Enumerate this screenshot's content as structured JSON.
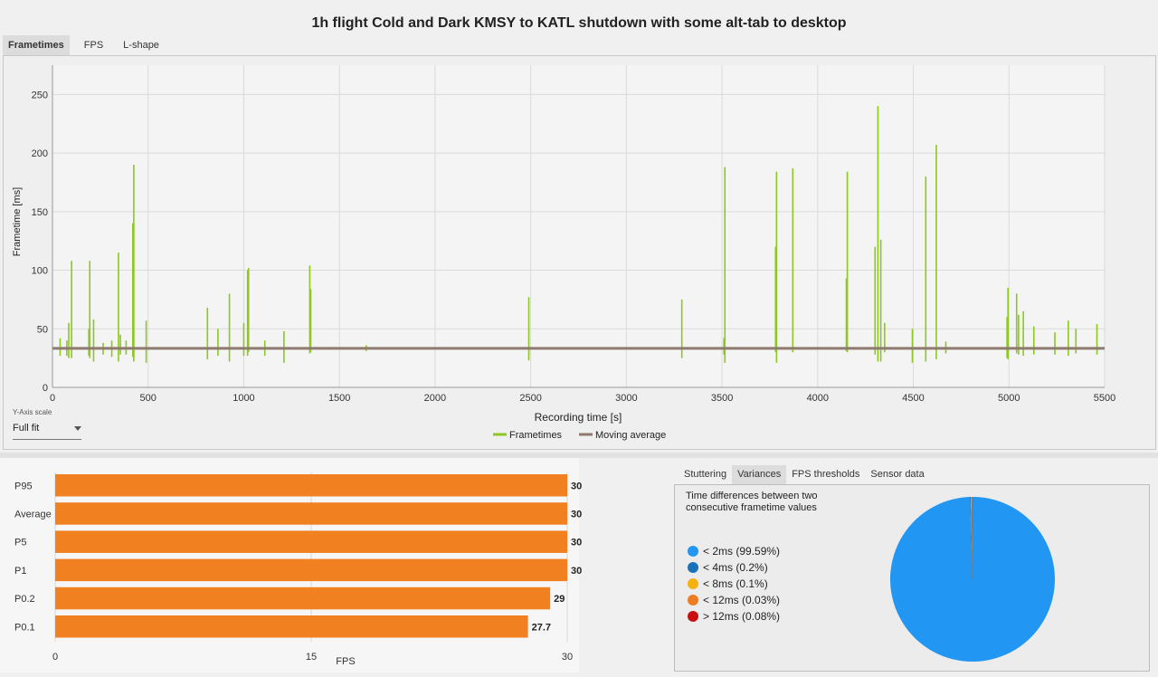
{
  "title": "1h flight Cold and Dark KMSY to KATL shutdown with some alt-tab to desktop",
  "tabs": [
    "Frametimes",
    "FPS",
    "L-shape"
  ],
  "y_axis_scale": {
    "label": "Y-Axis scale",
    "value": "Full fit"
  },
  "right_tabs": [
    "Stuttering",
    "Variances",
    "FPS thresholds",
    "Sensor data"
  ],
  "colors": {
    "frametimes": "#8cc820",
    "moving_average": "#8e7a6e",
    "bar": "#f08020",
    "pie_main": "#2196f3"
  },
  "chart_data": [
    {
      "type": "line",
      "xlabel": "Recording time [s]",
      "ylabel": "Frametime [ms]",
      "xlim": [
        0,
        5500
      ],
      "ylim": [
        0,
        275
      ],
      "xticks": [
        0,
        500,
        1000,
        1500,
        2000,
        2500,
        3000,
        3500,
        4000,
        4500,
        5000,
        5500
      ],
      "yticks": [
        0,
        50,
        100,
        150,
        200,
        250
      ],
      "grid": true,
      "legend": "bottom-center",
      "baseline_ms": 33.3,
      "series": [
        {
          "name": "Frametimes",
          "spikes": [
            [
              40,
              42,
              27
            ],
            [
              75,
              40,
              27
            ],
            [
              85,
              55,
              25
            ],
            [
              100,
              108,
              25
            ],
            [
              190,
              50,
              27
            ],
            [
              195,
              108,
              25
            ],
            [
              215,
              58,
              22
            ],
            [
              265,
              38,
              28
            ],
            [
              310,
              40,
              26
            ],
            [
              345,
              115,
              22
            ],
            [
              355,
              45,
              28
            ],
            [
              385,
              40,
              28
            ],
            [
              420,
              140,
              26
            ],
            [
              425,
              190,
              22
            ],
            [
              490,
              57,
              21
            ],
            [
              810,
              68,
              24
            ],
            [
              865,
              50,
              27
            ],
            [
              925,
              80,
              22
            ],
            [
              1000,
              55,
              27
            ],
            [
              1020,
              100,
              27
            ],
            [
              1025,
              102,
              30
            ],
            [
              1110,
              40,
              27
            ],
            [
              1210,
              48,
              21
            ],
            [
              1345,
              104,
              29
            ],
            [
              1350,
              84,
              30
            ],
            [
              1640,
              36,
              31
            ],
            [
              2490,
              77,
              23
            ],
            [
              3290,
              75,
              25
            ],
            [
              3510,
              42,
              28
            ],
            [
              3515,
              188,
              21
            ],
            [
              3780,
              120,
              30
            ],
            [
              3785,
              184,
              21
            ],
            [
              3870,
              187,
              30
            ],
            [
              4150,
              93,
              31
            ],
            [
              4155,
              184,
              30
            ],
            [
              4300,
              120,
              28
            ],
            [
              4315,
              240,
              22
            ],
            [
              4330,
              126,
              22
            ],
            [
              4350,
              55,
              30
            ],
            [
              4495,
              50,
              21
            ],
            [
              4565,
              180,
              22
            ],
            [
              4620,
              207,
              24
            ],
            [
              4670,
              39,
              29
            ],
            [
              4990,
              60,
              25
            ],
            [
              4995,
              85,
              24
            ],
            [
              5040,
              80,
              29
            ],
            [
              5050,
              62,
              28
            ],
            [
              5075,
              65,
              27
            ],
            [
              5130,
              52,
              28
            ],
            [
              5240,
              47,
              28
            ],
            [
              5310,
              57,
              27
            ],
            [
              5350,
              50,
              29
            ],
            [
              5460,
              54,
              28
            ]
          ]
        },
        {
          "name": "Moving average",
          "value": 33.3
        }
      ]
    },
    {
      "type": "bar",
      "orientation": "horizontal",
      "xlabel": "FPS",
      "xlim": [
        0,
        30
      ],
      "xticks": [
        0,
        15,
        30
      ],
      "categories": [
        "P95",
        "Average",
        "P5",
        "P1",
        "P0.2",
        "P0.1"
      ],
      "values": [
        30,
        30,
        30,
        30,
        29,
        27.7
      ],
      "value_labels": [
        "30",
        "30",
        "30",
        "30",
        "29",
        "27.7"
      ]
    },
    {
      "type": "pie",
      "title": "Time differences between two consecutive frametime values",
      "slices": [
        {
          "label": "< 2ms (99.59%)",
          "value": 99.59,
          "color": "#2196f3"
        },
        {
          "label": "< 4ms (0.2%)",
          "value": 0.2,
          "color": "#1a72b8"
        },
        {
          "label": "< 8ms (0.1%)",
          "value": 0.1,
          "color": "#f5b011"
        },
        {
          "label": "< 12ms (0.03%)",
          "value": 0.03,
          "color": "#ef7c22"
        },
        {
          "label": "> 12ms (0.08%)",
          "value": 0.08,
          "color": "#c81010"
        }
      ]
    }
  ]
}
